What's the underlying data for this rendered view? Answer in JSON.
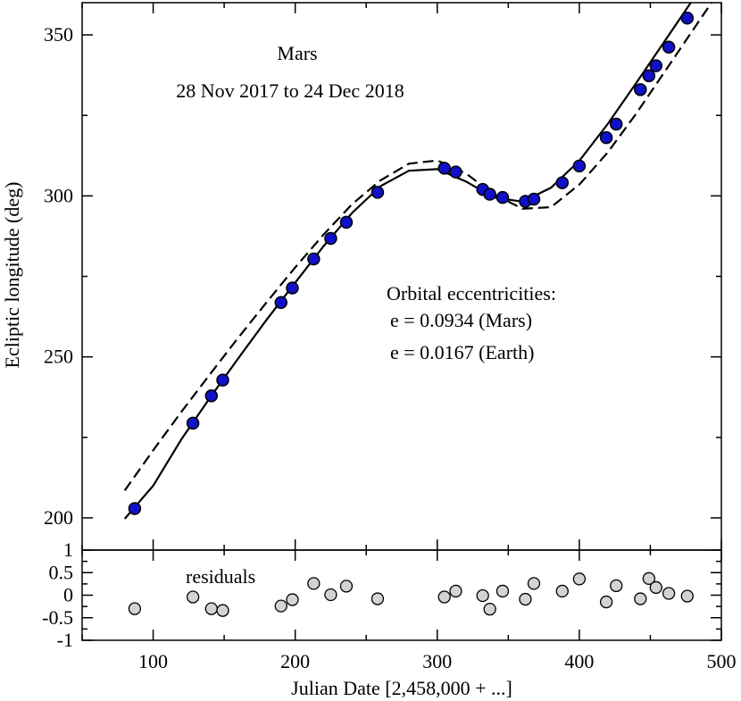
{
  "chart_data": {
    "type": "scatter",
    "annotations": {
      "title": "Mars",
      "date_range": "28 Nov 2017 to 24 Dec 2018",
      "eccentricity_heading": "Orbital eccentricities:",
      "ecc_mars": "e = 0.0934 (Mars)",
      "ecc_earth": "e = 0.0167 (Earth)",
      "residuals_label": "residuals"
    },
    "xlabel": "Julian Date [2,458,000 + ...]",
    "ylabel": "Ecliptic longitude (deg)",
    "xlim": [
      50,
      500
    ],
    "ylim": [
      190,
      360
    ],
    "residual_ylim": [
      -1,
      1
    ],
    "x_ticks": [
      100,
      200,
      300,
      400,
      500
    ],
    "y_ticks": [
      200,
      250,
      300,
      350
    ],
    "residual_ticks": [
      "1",
      "0.5",
      "0",
      "-0.5",
      "-1"
    ],
    "grid": false,
    "colors": {
      "points": "#1010c8",
      "residual_points": "#d3d3d3",
      "lines": "#000000"
    },
    "series": [
      {
        "kind": "points",
        "x": [
          87,
          128,
          141,
          149,
          190,
          198,
          213,
          225,
          236,
          258,
          305,
          313,
          332,
          337,
          346,
          362,
          368,
          388,
          400,
          419,
          426,
          443,
          449,
          454,
          463,
          476
        ],
        "y": [
          202.9,
          229.4,
          237.9,
          242.8,
          266.9,
          271.4,
          280.4,
          286.8,
          291.8,
          301.1,
          308.6,
          307.4,
          302.0,
          300.5,
          299.5,
          298.3,
          299.0,
          304.1,
          309.3,
          318.1,
          322.3,
          333.0,
          337.3,
          340.4,
          346.2,
          355.2
        ]
      },
      {
        "kind": "fit-solid",
        "x": [
          80,
          100,
          120,
          140,
          160,
          180,
          200,
          220,
          240,
          260,
          280,
          300,
          320,
          340,
          360,
          380,
          400,
          420,
          440,
          460,
          480,
          500
        ],
        "y": [
          199.7,
          210.0,
          224.5,
          237.3,
          249.6,
          261.6,
          273.1,
          284.4,
          294.7,
          303.0,
          307.8,
          308.3,
          304.5,
          299.5,
          298.2,
          302.5,
          310.9,
          322.3,
          335.0,
          348.0,
          361.0,
          374.0
        ]
      },
      {
        "kind": "fit-dashed",
        "x": [
          80,
          100,
          120,
          140,
          160,
          180,
          200,
          220,
          240,
          260,
          280,
          300,
          320,
          340,
          360,
          380,
          400,
          420,
          440,
          460,
          480,
          500
        ],
        "y": [
          208.5,
          221.0,
          233.0,
          244.6,
          256.0,
          267.0,
          277.8,
          288.0,
          297.4,
          304.8,
          310.0,
          311.0,
          307.0,
          300.5,
          296.0,
          296.5,
          303.5,
          313.5,
          325.5,
          338.5,
          351.5,
          364.5
        ]
      },
      {
        "kind": "residuals",
        "x": [
          87,
          128,
          141,
          149,
          190,
          198,
          213,
          225,
          236,
          258,
          305,
          313,
          332,
          337,
          346,
          362,
          368,
          388,
          400,
          419,
          426,
          443,
          449,
          454,
          463,
          476
        ],
        "y": [
          -0.3,
          -0.04,
          -0.3,
          -0.34,
          -0.24,
          -0.1,
          0.26,
          0.01,
          0.2,
          -0.08,
          -0.04,
          0.09,
          -0.01,
          -0.31,
          0.09,
          -0.09,
          0.26,
          0.09,
          0.36,
          -0.15,
          0.21,
          -0.08,
          0.37,
          0.17,
          0.04,
          -0.02
        ]
      }
    ]
  }
}
